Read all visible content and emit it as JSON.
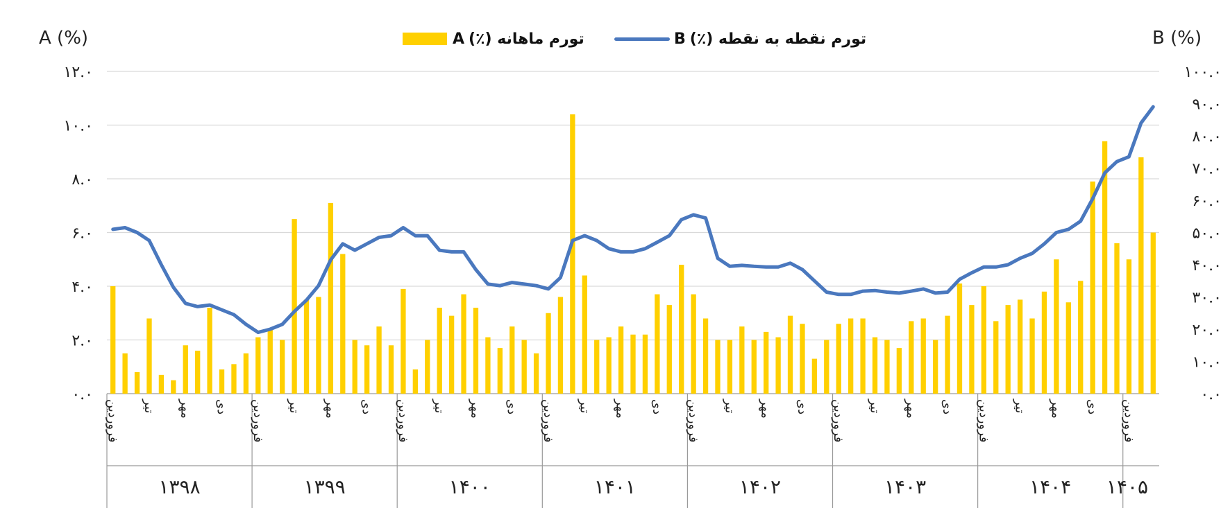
{
  "chart_data": {
    "type": "bar+line",
    "left_axis": {
      "title": "A (%)",
      "ticks": [
        "۰.۰",
        "۲.۰",
        "۴.۰",
        "۶.۰",
        "۸.۰",
        "۱۰.۰",
        "۱۲.۰"
      ],
      "ylim": [
        0,
        12
      ]
    },
    "right_axis": {
      "title": "B (%)",
      "ticks": [
        "۰.۰",
        "۱۰.۰",
        "۲۰.۰",
        "۳۰.۰",
        "۴۰.۰",
        "۵۰.۰",
        "۶۰.۰",
        "۷۰.۰",
        "۸۰.۰",
        "۹۰.۰",
        "۱۰۰.۰"
      ],
      "ylim": [
        0,
        100
      ]
    },
    "grid": "horizontal",
    "legend_position": "top-center",
    "series": [
      {
        "name": "تورم ماهانه (٪)A",
        "legend_text": "تورم ماهانه (٪)",
        "legend_letter": "A",
        "type": "bar",
        "axis": "left",
        "color": "#FFD000",
        "values": [
          4.0,
          1.5,
          0.8,
          2.8,
          0.7,
          0.5,
          1.8,
          1.6,
          3.2,
          0.9,
          1.1,
          1.5,
          2.1,
          2.4,
          2.0,
          6.5,
          3.5,
          3.6,
          7.1,
          5.2,
          2.0,
          1.8,
          2.5,
          1.8,
          3.9,
          0.9,
          2.0,
          3.2,
          2.9,
          3.7,
          3.2,
          2.1,
          1.7,
          2.5,
          2.0,
          1.5,
          3.0,
          3.6,
          10.4,
          4.4,
          2.0,
          2.1,
          2.5,
          2.2,
          2.2,
          3.7,
          3.3,
          4.8,
          3.7,
          2.8,
          2.0,
          2.0,
          2.5,
          2.0,
          2.3,
          2.1,
          2.9,
          2.6,
          1.3,
          2.0,
          2.6,
          2.8,
          2.8,
          2.1,
          2.0,
          1.7,
          2.7,
          2.8,
          2.0,
          2.9,
          4.1,
          3.3,
          4.0,
          2.7,
          3.3,
          3.5,
          2.8,
          3.8,
          5.0,
          3.4,
          4.2,
          7.9,
          9.4,
          5.6,
          5.0,
          8.8,
          6.0
        ]
      },
      {
        "name": "تورم نقطه به نقطه (٪)B",
        "legend_text": "تورم نقطه به نقطه (٪)",
        "legend_letter": "B",
        "type": "line",
        "axis": "right",
        "color": "#4A78BE",
        "values": [
          51.0,
          51.5,
          50.0,
          47.5,
          40.0,
          33.0,
          28.0,
          27.0,
          27.5,
          26.0,
          24.5,
          21.5,
          19.0,
          20.0,
          21.5,
          25.5,
          29.0,
          33.5,
          41.5,
          46.5,
          44.5,
          46.5,
          48.5,
          49.0,
          51.5,
          49.0,
          49.0,
          44.5,
          44.0,
          44.0,
          38.5,
          34.0,
          33.5,
          34.5,
          34.0,
          33.5,
          32.5,
          36.0,
          47.5,
          49.0,
          47.5,
          45.0,
          44.0,
          44.0,
          45.0,
          47.0,
          49.0,
          54.0,
          55.5,
          54.5,
          42.0,
          39.5,
          39.8,
          39.5,
          39.3,
          39.3,
          40.5,
          38.5,
          35.0,
          31.5,
          30.8,
          30.8,
          31.8,
          32.0,
          31.5,
          31.2,
          31.8,
          32.5,
          31.2,
          31.5,
          35.5,
          37.5,
          39.3,
          39.3,
          40.0,
          42.0,
          43.5,
          46.5,
          50.0,
          51.0,
          53.5,
          60.5,
          68.5,
          72.0,
          73.5,
          84.0,
          89.0
        ]
      }
    ],
    "groups": [
      {
        "year": "۱۳۹۸",
        "months": 12,
        "labels": [
          "فروردین",
          "",
          "",
          "تیر",
          "",
          "",
          "مهر",
          "",
          "",
          "دی",
          "",
          ""
        ]
      },
      {
        "year": "۱۳۹۹",
        "months": 12,
        "labels": [
          "فروردین",
          "",
          "",
          "تیر",
          "",
          "",
          "مهر",
          "",
          "",
          "دی",
          "",
          ""
        ]
      },
      {
        "year": "۱۴۰۰",
        "months": 12,
        "labels": [
          "فروردین",
          "",
          "",
          "تیر",
          "",
          "",
          "مهر",
          "",
          "",
          "دی",
          "",
          ""
        ]
      },
      {
        "year": "۱۴۰۱",
        "months": 12,
        "labels": [
          "فروردین",
          "",
          "",
          "تیر",
          "",
          "",
          "مهر",
          "",
          "",
          "دی",
          "",
          ""
        ]
      },
      {
        "year": "۱۴۰۲",
        "months": 12,
        "labels": [
          "فروردین",
          "",
          "",
          "تیر",
          "",
          "",
          "مهر",
          "",
          "",
          "دی",
          "",
          ""
        ]
      },
      {
        "year": "۱۴۰۳",
        "months": 12,
        "labels": [
          "فروردین",
          "",
          "",
          "تیر",
          "",
          "",
          "مهر",
          "",
          "",
          "دی",
          "",
          ""
        ]
      },
      {
        "year": "۱۴۰۴",
        "months": 12,
        "labels": [
          "فروردین",
          "",
          "",
          "تیر",
          "",
          "",
          "مهر",
          "",
          "",
          "دی",
          "",
          ""
        ]
      },
      {
        "year": "۱۴۰۵",
        "months": 3,
        "labels": [
          "فروردین",
          "",
          ""
        ]
      }
    ]
  }
}
